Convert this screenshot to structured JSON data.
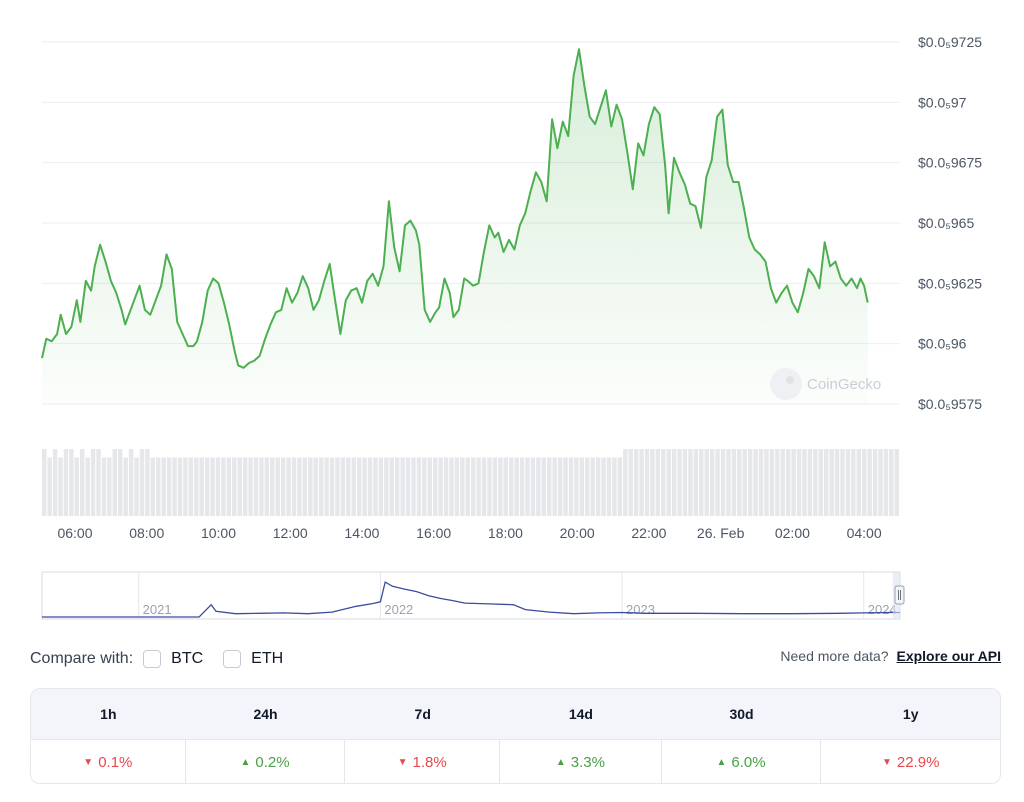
{
  "chart_data": [
    {
      "type": "area",
      "y_axis_position": "right",
      "y_ticks": [
        "$0.0₅9725",
        "$0.0₅97",
        "$0.0₅9675",
        "$0.0₅965",
        "$0.0₅9625",
        "$0.0₅96",
        "$0.0₅9575"
      ],
      "y_tick_values": [
        9.725e-06,
        9.7e-06,
        9.675e-06,
        9.65e-06,
        9.625e-06,
        9.6e-06,
        9.575e-06
      ],
      "ylim": [
        9.575e-06,
        9.725e-06
      ],
      "x_ticks": [
        "06:00",
        "08:00",
        "10:00",
        "12:00",
        "14:00",
        "16:00",
        "18:00",
        "20:00",
        "22:00",
        "26. Feb",
        "02:00",
        "04:00"
      ],
      "x_tick_values": [
        6,
        8,
        10,
        12,
        14,
        16,
        18,
        20,
        22,
        24,
        26,
        28
      ],
      "xlim": [
        5.08,
        29.0
      ],
      "grid": true,
      "line_color": "#4caf50",
      "volume_color": "#e6e7eb",
      "series": [
        {
          "points": [
            [
              5.08,
              9594
            ],
            [
              5.2,
              9602
            ],
            [
              5.35,
              9601
            ],
            [
              5.5,
              9604
            ],
            [
              5.6,
              9612
            ],
            [
              5.75,
              9604
            ],
            [
              5.9,
              9607
            ],
            [
              6.05,
              9618
            ],
            [
              6.15,
              9609
            ],
            [
              6.3,
              9626
            ],
            [
              6.45,
              9622
            ],
            [
              6.55,
              9632
            ],
            [
              6.7,
              9641
            ],
            [
              6.85,
              9634
            ],
            [
              7.0,
              9626
            ],
            [
              7.15,
              9621
            ],
            [
              7.3,
              9614
            ],
            [
              7.4,
              9608
            ],
            [
              7.5,
              9612
            ],
            [
              7.65,
              9618
            ],
            [
              7.8,
              9624
            ],
            [
              7.95,
              9614
            ],
            [
              8.1,
              9612
            ],
            [
              8.25,
              9618
            ],
            [
              8.4,
              9624
            ],
            [
              8.55,
              9637
            ],
            [
              8.7,
              9631
            ],
            [
              8.85,
              9609
            ],
            [
              9.0,
              9604
            ],
            [
              9.15,
              9599
            ],
            [
              9.3,
              9599
            ],
            [
              9.4,
              9601
            ],
            [
              9.55,
              9609
            ],
            [
              9.7,
              9622
            ],
            [
              9.85,
              9627
            ],
            [
              10.0,
              9625
            ],
            [
              10.15,
              9617
            ],
            [
              10.3,
              9608
            ],
            [
              10.45,
              9597
            ],
            [
              10.55,
              9591
            ],
            [
              10.7,
              9590
            ],
            [
              10.85,
              9592
            ],
            [
              11.0,
              9593
            ],
            [
              11.15,
              9595
            ],
            [
              11.3,
              9602
            ],
            [
              11.45,
              9608
            ],
            [
              11.6,
              9613
            ],
            [
              11.75,
              9614
            ],
            [
              11.9,
              9623
            ],
            [
              12.05,
              9617
            ],
            [
              12.2,
              9621
            ],
            [
              12.35,
              9628
            ],
            [
              12.5,
              9623
            ],
            [
              12.65,
              9614
            ],
            [
              12.8,
              9618
            ],
            [
              12.95,
              9626
            ],
            [
              13.1,
              9633
            ],
            [
              13.25,
              9618
            ],
            [
              13.4,
              9604
            ],
            [
              13.55,
              9618
            ],
            [
              13.7,
              9622
            ],
            [
              13.85,
              9623
            ],
            [
              14.0,
              9617
            ],
            [
              14.15,
              9626
            ],
            [
              14.3,
              9629
            ],
            [
              14.45,
              9624
            ],
            [
              14.6,
              9632
            ],
            [
              14.75,
              9659
            ],
            [
              14.9,
              9640
            ],
            [
              15.05,
              9630
            ],
            [
              15.2,
              9649
            ],
            [
              15.35,
              9651
            ],
            [
              15.5,
              9647
            ],
            [
              15.6,
              9641
            ],
            [
              15.75,
              9614
            ],
            [
              15.9,
              9609
            ],
            [
              16.05,
              9613
            ],
            [
              16.15,
              9615
            ],
            [
              16.3,
              9627
            ],
            [
              16.45,
              9621
            ],
            [
              16.55,
              9611
            ],
            [
              16.7,
              9614
            ],
            [
              16.85,
              9627
            ],
            [
              16.95,
              9626
            ],
            [
              17.1,
              9624
            ],
            [
              17.25,
              9625
            ],
            [
              17.4,
              9638
            ],
            [
              17.55,
              9649
            ],
            [
              17.7,
              9644
            ],
            [
              17.8,
              9646
            ],
            [
              17.95,
              9638
            ],
            [
              18.1,
              9643
            ],
            [
              18.25,
              9639
            ],
            [
              18.4,
              9649
            ],
            [
              18.55,
              9654
            ],
            [
              18.7,
              9663
            ],
            [
              18.85,
              9671
            ],
            [
              19.0,
              9667
            ],
            [
              19.15,
              9659
            ],
            [
              19.3,
              9693
            ],
            [
              19.45,
              9681
            ],
            [
              19.6,
              9692
            ],
            [
              19.75,
              9686
            ],
            [
              19.9,
              9711
            ],
            [
              20.05,
              9722
            ],
            [
              20.2,
              9707
            ],
            [
              20.35,
              9694
            ],
            [
              20.5,
              9691
            ],
            [
              20.65,
              9698
            ],
            [
              20.8,
              9705
            ],
            [
              20.95,
              9690
            ],
            [
              21.1,
              9699
            ],
            [
              21.25,
              9693
            ],
            [
              21.4,
              9679
            ],
            [
              21.55,
              9664
            ],
            [
              21.7,
              9683
            ],
            [
              21.85,
              9678
            ],
            [
              22.0,
              9691
            ],
            [
              22.15,
              9698
            ],
            [
              22.3,
              9695
            ],
            [
              22.45,
              9674
            ],
            [
              22.55,
              9654
            ],
            [
              22.7,
              9677
            ],
            [
              22.85,
              9671
            ],
            [
              23.0,
              9666
            ],
            [
              23.15,
              9658
            ],
            [
              23.3,
              9657
            ],
            [
              23.45,
              9648
            ],
            [
              23.6,
              9669
            ],
            [
              23.75,
              9676
            ],
            [
              23.9,
              9694
            ],
            [
              24.05,
              9697
            ],
            [
              24.2,
              9674
            ],
            [
              24.35,
              9667
            ],
            [
              24.5,
              9667
            ],
            [
              24.65,
              9656
            ],
            [
              24.8,
              9644
            ],
            [
              24.95,
              9639
            ],
            [
              25.1,
              9637
            ],
            [
              25.25,
              9634
            ],
            [
              25.4,
              9623
            ],
            [
              25.55,
              9617
            ],
            [
              25.7,
              9621
            ],
            [
              25.85,
              9624
            ],
            [
              26.0,
              9617
            ],
            [
              26.15,
              9613
            ],
            [
              26.3,
              9621
            ],
            [
              26.45,
              9631
            ],
            [
              26.6,
              9628
            ],
            [
              26.75,
              9623
            ],
            [
              26.9,
              9642
            ],
            [
              27.05,
              9632
            ],
            [
              27.2,
              9634
            ],
            [
              27.35,
              9627
            ],
            [
              27.5,
              9624
            ],
            [
              27.65,
              9627
            ],
            [
              27.8,
              9623
            ],
            [
              27.9,
              9627
            ],
            [
              28.0,
              9624
            ],
            [
              28.1,
              9617
            ]
          ]
        }
      ],
      "volume": [
        8,
        7,
        8,
        7,
        8,
        8,
        7,
        8,
        7,
        8,
        8,
        7,
        7,
        8,
        8,
        7,
        8,
        7,
        8,
        8,
        7,
        7,
        7,
        7,
        7,
        7,
        7,
        7,
        7,
        7,
        7,
        7,
        7,
        7,
        7,
        7,
        7,
        7,
        7,
        7,
        7,
        7,
        7,
        7,
        7,
        7,
        7,
        7,
        7,
        7,
        7,
        7,
        7,
        7,
        7,
        7,
        7,
        7,
        7,
        7,
        7,
        7,
        7,
        7,
        7,
        7,
        7,
        7,
        7,
        7,
        7,
        7,
        7,
        7,
        7,
        7,
        7,
        7,
        7,
        7,
        7,
        7,
        7,
        7,
        7,
        7,
        7,
        7,
        7,
        7,
        7,
        7,
        7,
        7,
        7,
        7,
        7,
        7,
        7,
        7,
        7,
        7,
        7,
        7,
        7,
        7,
        7,
        8,
        8,
        8,
        8,
        8,
        8,
        8,
        8,
        8,
        8,
        8,
        8,
        8,
        8,
        8,
        8,
        8,
        8,
        8,
        8,
        8,
        8,
        8,
        8,
        8,
        8,
        8,
        8,
        8,
        8,
        8,
        8,
        8,
        8,
        8,
        8,
        8,
        8,
        8,
        8,
        8,
        8,
        8,
        8,
        8,
        8,
        8,
        8,
        8,
        8,
        8
      ],
      "watermark": "CoinGecko"
    },
    {
      "type": "line",
      "x_ticks": [
        "2021",
        "2022",
        "2023",
        "2024"
      ],
      "x_tick_values": [
        2021,
        2022,
        2023,
        2024
      ],
      "xlim": [
        2020.6,
        2024.15
      ],
      "ylim": [
        0,
        100
      ],
      "line_color": "#3b4b9e",
      "selected_range": [
        2024.12,
        2024.15
      ],
      "series": [
        {
          "points": [
            [
              2020.6,
              0
            ],
            [
              2021.25,
              0
            ],
            [
              2021.3,
              30
            ],
            [
              2021.32,
              14
            ],
            [
              2021.4,
              8
            ],
            [
              2021.5,
              9
            ],
            [
              2021.6,
              10
            ],
            [
              2021.7,
              8
            ],
            [
              2021.8,
              12
            ],
            [
              2021.9,
              26
            ],
            [
              2021.97,
              33
            ],
            [
              2022.0,
              37
            ],
            [
              2022.02,
              85
            ],
            [
              2022.05,
              75
            ],
            [
              2022.1,
              68
            ],
            [
              2022.15,
              62
            ],
            [
              2022.2,
              52
            ],
            [
              2022.25,
              45
            ],
            [
              2022.3,
              40
            ],
            [
              2022.35,
              34
            ],
            [
              2022.45,
              32
            ],
            [
              2022.55,
              30
            ],
            [
              2022.6,
              18
            ],
            [
              2022.7,
              12
            ],
            [
              2022.8,
              8
            ],
            [
              2022.9,
              10
            ],
            [
              2023.0,
              11
            ],
            [
              2023.1,
              9
            ],
            [
              2023.3,
              9
            ],
            [
              2023.5,
              8
            ],
            [
              2023.7,
              8
            ],
            [
              2023.9,
              9
            ],
            [
              2024.0,
              10
            ],
            [
              2024.1,
              11
            ],
            [
              2024.15,
              11
            ]
          ]
        }
      ]
    }
  ],
  "compare": {
    "label": "Compare with:",
    "options": [
      {
        "label": "BTC",
        "checked": false
      },
      {
        "label": "ETH",
        "checked": false
      }
    ]
  },
  "api": {
    "text": "Need more data?",
    "link": "Explore our API"
  },
  "changes": {
    "headers": [
      "1h",
      "24h",
      "7d",
      "14d",
      "30d",
      "1y"
    ],
    "values": [
      {
        "value": "0.1%",
        "direction": "down"
      },
      {
        "value": "0.2%",
        "direction": "up"
      },
      {
        "value": "1.8%",
        "direction": "down"
      },
      {
        "value": "3.3%",
        "direction": "up"
      },
      {
        "value": "6.0%",
        "direction": "up"
      },
      {
        "value": "22.9%",
        "direction": "down"
      }
    ],
    "colors": {
      "up": "#4aa145",
      "down": "#e5484d"
    }
  }
}
